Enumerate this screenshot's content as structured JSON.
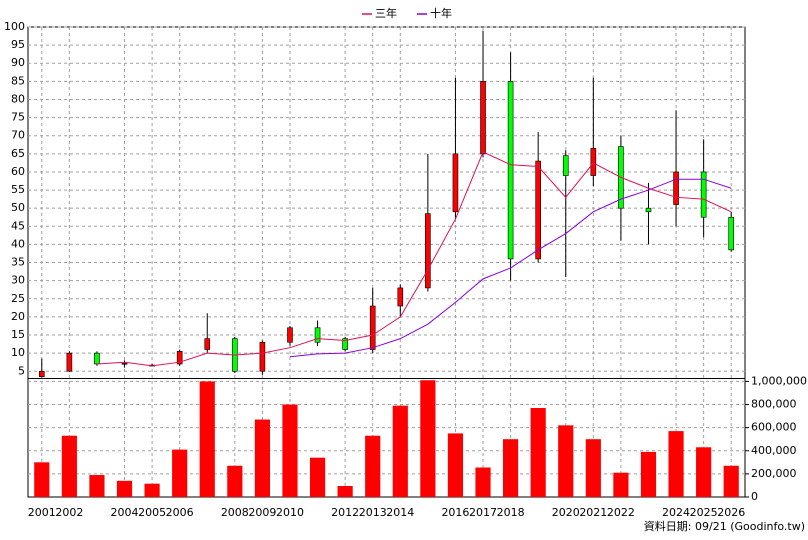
{
  "chart_data": {
    "type": "candlestick",
    "categories": [
      "2001",
      "2002",
      null,
      "2004",
      "2005",
      "2006",
      null,
      "2008",
      "2009",
      "2010",
      null,
      "2012",
      "2013",
      "2014",
      null,
      "2016",
      "2017",
      "2018",
      null,
      "2020",
      "2021",
      "2022",
      null,
      "2024",
      "2025",
      "2026"
    ],
    "open": [
      3.5,
      5,
      10,
      7,
      6.5,
      7,
      11,
      14,
      5,
      13,
      17,
      14,
      11,
      23,
      28,
      49,
      65,
      85,
      36,
      64.5,
      59,
      67,
      50,
      51,
      60,
      47.5
    ],
    "high": [
      8.5,
      10.5,
      10.5,
      8,
      7,
      11,
      21,
      14.5,
      13.5,
      17.5,
      19,
      14.5,
      28,
      29,
      65,
      86,
      99,
      93,
      71,
      66,
      86,
      70,
      57,
      77,
      69,
      49
    ],
    "low": [
      3.3,
      4.8,
      6.5,
      6,
      6.3,
      6.5,
      10,
      4.5,
      4,
      12,
      12,
      10.5,
      10,
      20,
      27,
      47,
      64,
      30,
      35,
      31,
      56,
      41,
      40,
      45,
      42,
      38
    ],
    "close": [
      5,
      10,
      7,
      7.2,
      6.7,
      10.5,
      14,
      5,
      13,
      17,
      13,
      11,
      23,
      28,
      48.5,
      65,
      85,
      36,
      63,
      59,
      66.5,
      50,
      49,
      60,
      47.5,
      38.5
    ],
    "up_color": "#ff0000",
    "down_color": "#00ff00",
    "series": [
      {
        "name": "三年",
        "color": "#e0105a",
        "values": [
          null,
          null,
          7,
          7.5,
          6.5,
          7.5,
          10,
          9.5,
          10,
          11.5,
          14,
          13.5,
          15,
          20,
          33,
          47,
          65.5,
          62,
          61.5,
          53,
          62.5,
          58.5,
          55.5,
          53,
          52.5,
          49
        ]
      },
      {
        "name": "十年",
        "color": "#8a00e0",
        "values": [
          null,
          null,
          null,
          null,
          null,
          null,
          null,
          null,
          null,
          9,
          9.8,
          10,
          11.5,
          14,
          18,
          24,
          30.5,
          33.5,
          38.5,
          43,
          49,
          52.5,
          55,
          58,
          58,
          55.5
        ]
      }
    ],
    "ylim": [
      3,
      100
    ],
    "yticks": [
      5,
      10,
      15,
      20,
      25,
      30,
      35,
      40,
      45,
      50,
      55,
      60,
      65,
      70,
      75,
      80,
      85,
      90,
      95,
      100
    ],
    "volume": {
      "color": "#ff0000",
      "values": [
        300000,
        530000,
        190000,
        140000,
        115000,
        410000,
        1000000,
        270000,
        670000,
        800000,
        340000,
        95000,
        530000,
        790000,
        1010000,
        550000,
        255000,
        500000,
        770000,
        620000,
        500000,
        210000,
        390000,
        570000,
        430000,
        270000
      ],
      "ylim": [
        0,
        1025000
      ],
      "yticks": [
        0,
        {
          "value": 200000,
          "label": "200,000"
        },
        {
          "value": 400000,
          "label": "400,000"
        },
        {
          "value": 600000,
          "label": "600,000"
        },
        {
          "value": 800000,
          "label": "800,000"
        },
        {
          "value": 1000000,
          "label": "1,000,000"
        }
      ]
    },
    "grid": true,
    "footer": "資料日期: 09/21 (Goodinfo.tw)"
  }
}
